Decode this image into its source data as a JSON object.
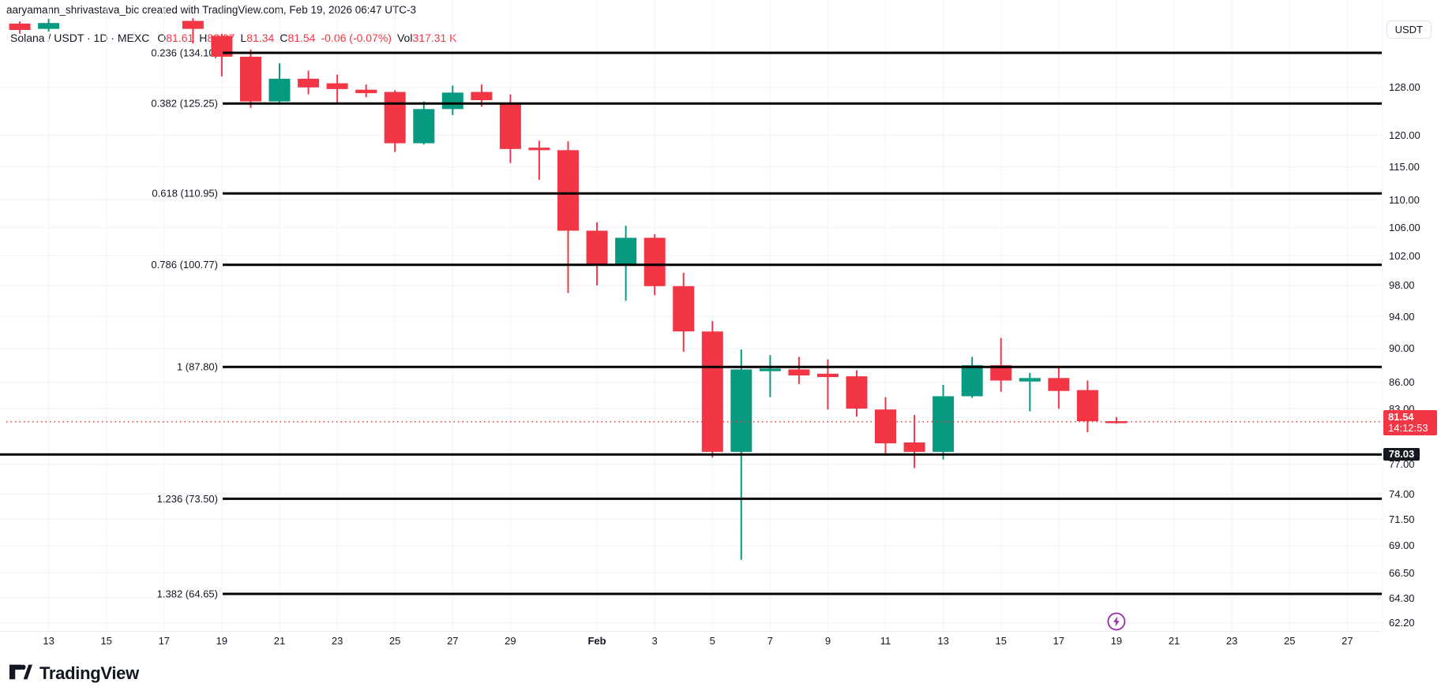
{
  "header": {
    "attribution": "aaryamann_shrivastava_bic created with TradingView.com, Feb 19, 2026 06:47 UTC-3"
  },
  "legend": {
    "symbol": "Solana / USDT · 1D · MEXC",
    "ohlc": [
      {
        "label": "O",
        "value": "81.61"
      },
      {
        "label": "H",
        "value": "82.07"
      },
      {
        "label": "L",
        "value": "81.34"
      },
      {
        "label": "C",
        "value": "81.54"
      }
    ],
    "change": "-0.06 (-0.07%)",
    "vol_label": "Vol",
    "vol_value": "317.31 K"
  },
  "axis_button": {
    "label": "USDT"
  },
  "price_axis": {
    "labels": [
      {
        "text": "128.00",
        "price": 128.0
      },
      {
        "text": "120.00",
        "price": 120.0
      },
      {
        "text": "115.00",
        "price": 115.0
      },
      {
        "text": "110.00",
        "price": 110.0
      },
      {
        "text": "106.00",
        "price": 106.0
      },
      {
        "text": "102.00",
        "price": 102.0
      },
      {
        "text": "98.00",
        "price": 98.0
      },
      {
        "text": "94.00",
        "price": 94.0
      },
      {
        "text": "90.00",
        "price": 90.0
      },
      {
        "text": "86.00",
        "price": 86.0
      },
      {
        "text": "83.00",
        "price": 83.0
      },
      {
        "text": "77.00",
        "price": 77.0
      },
      {
        "text": "74.00",
        "price": 74.0
      },
      {
        "text": "71.50",
        "price": 71.5
      },
      {
        "text": "69.00",
        "price": 69.0
      },
      {
        "text": "66.50",
        "price": 66.5
      },
      {
        "text": "64.30",
        "price": 64.3
      },
      {
        "text": "62.20",
        "price": 62.2
      }
    ],
    "current_badge": {
      "price": "81.54",
      "countdown": "14:12:53"
    },
    "line_badge": {
      "price": "78.03"
    }
  },
  "time_axis": {
    "labels": [
      {
        "text": "13",
        "day": 0
      },
      {
        "text": "15",
        "day": 2
      },
      {
        "text": "17",
        "day": 4
      },
      {
        "text": "19",
        "day": 6
      },
      {
        "text": "21",
        "day": 8
      },
      {
        "text": "23",
        "day": 10
      },
      {
        "text": "25",
        "day": 12
      },
      {
        "text": "27",
        "day": 14
      },
      {
        "text": "29",
        "day": 16
      },
      {
        "text": "Feb",
        "day": 19,
        "bold": true
      },
      {
        "text": "3",
        "day": 21
      },
      {
        "text": "5",
        "day": 23
      },
      {
        "text": "7",
        "day": 25
      },
      {
        "text": "9",
        "day": 27
      },
      {
        "text": "11",
        "day": 29
      },
      {
        "text": "13",
        "day": 31
      },
      {
        "text": "15",
        "day": 33
      },
      {
        "text": "17",
        "day": 35
      },
      {
        "text": "19",
        "day": 37
      },
      {
        "text": "21",
        "day": 39
      },
      {
        "text": "23",
        "day": 41
      },
      {
        "text": "25",
        "day": 43
      },
      {
        "text": "27",
        "day": 45
      }
    ]
  },
  "fib_levels": [
    {
      "label": "0.236 (134.10)",
      "price": 134.1
    },
    {
      "label": "0.382 (125.25)",
      "price": 125.25
    },
    {
      "label": "0.618 (110.95)",
      "price": 110.95
    },
    {
      "label": "0.786 (100.77)",
      "price": 100.77
    },
    {
      "label": "1 (87.80)",
      "price": 87.8
    },
    {
      "label": "1.236 (73.50)",
      "price": 73.5
    },
    {
      "label": "1.382 (64.65)",
      "price": 64.65
    }
  ],
  "horizontal_line": {
    "price": 78.03
  },
  "current_price": 81.54,
  "event_icon": {
    "glyph": "lightning",
    "day": 37,
    "color": "#9c27b0"
  },
  "logo": {
    "text": "TradingView"
  },
  "colors": {
    "up": "#089981",
    "down": "#f23645",
    "grid": "#f0f3fa",
    "fib_line": "#000000",
    "current_line": "#f23645",
    "text": "#131722"
  },
  "chart_data": {
    "type": "candlestick",
    "title": "Solana / USDT · 1D · MEXC",
    "symbol": "Solana / USDT",
    "interval": "1D",
    "exchange": "MEXC",
    "scale": "log",
    "ylim": [
      61.5,
      144.0
    ],
    "volume_label": "317.31 K",
    "candles": [
      {
        "date": "Jan 12",
        "d": -1,
        "o": 139.5,
        "h": 139.9,
        "l": 137.6,
        "c": 138.3
      },
      {
        "date": "Jan 13",
        "d": 0,
        "o": 138.5,
        "h": 140.4,
        "l": 138.0,
        "c": 139.6
      },
      {
        "date": "Jan 18",
        "d": 5,
        "o": 140.0,
        "h": 140.5,
        "l": 135.8,
        "c": 138.5
      },
      {
        "date": "Jan 19",
        "d": 6,
        "o": 137.2,
        "h": 137.6,
        "l": 129.9,
        "c": 133.4
      },
      {
        "date": "Jan 20",
        "d": 7,
        "o": 133.4,
        "h": 134.7,
        "l": 124.5,
        "c": 125.6
      },
      {
        "date": "Jan 21",
        "d": 8,
        "o": 125.6,
        "h": 132.2,
        "l": 125.3,
        "c": 129.5
      },
      {
        "date": "Jan 22",
        "d": 9,
        "o": 129.5,
        "h": 130.9,
        "l": 126.8,
        "c": 128.0
      },
      {
        "date": "Jan 23",
        "d": 10,
        "o": 128.7,
        "h": 130.2,
        "l": 125.4,
        "c": 127.7
      },
      {
        "date": "Jan 24",
        "d": 11,
        "o": 127.6,
        "h": 128.5,
        "l": 126.3,
        "c": 127.0
      },
      {
        "date": "Jan 25",
        "d": 12,
        "o": 127.2,
        "h": 127.5,
        "l": 117.3,
        "c": 118.7
      },
      {
        "date": "Jan 26",
        "d": 13,
        "o": 118.7,
        "h": 125.6,
        "l": 118.5,
        "c": 124.3
      },
      {
        "date": "Jan 27",
        "d": 14,
        "o": 124.3,
        "h": 128.3,
        "l": 123.3,
        "c": 127.1
      },
      {
        "date": "Jan 28",
        "d": 15,
        "o": 127.2,
        "h": 128.5,
        "l": 124.7,
        "c": 125.8
      },
      {
        "date": "Jan 29",
        "d": 16,
        "o": 125.2,
        "h": 126.8,
        "l": 115.6,
        "c": 117.8
      },
      {
        "date": "Jan 30",
        "d": 17,
        "o": 118.0,
        "h": 119.1,
        "l": 113.0,
        "c": 117.6
      },
      {
        "date": "Jan 31",
        "d": 18,
        "o": 117.6,
        "h": 119.0,
        "l": 97.0,
        "c": 105.5
      },
      {
        "date": "Feb 1",
        "d": 19,
        "o": 105.5,
        "h": 106.7,
        "l": 98.0,
        "c": 100.7
      },
      {
        "date": "Feb 2",
        "d": 20,
        "o": 100.7,
        "h": 106.2,
        "l": 96.0,
        "c": 104.5
      },
      {
        "date": "Feb 3",
        "d": 21,
        "o": 104.5,
        "h": 105.0,
        "l": 96.7,
        "c": 97.9
      },
      {
        "date": "Feb 4",
        "d": 22,
        "o": 97.9,
        "h": 99.7,
        "l": 89.6,
        "c": 92.1
      },
      {
        "date": "Feb 5",
        "d": 23,
        "o": 92.1,
        "h": 93.4,
        "l": 77.7,
        "c": 78.3
      },
      {
        "date": "Feb 6",
        "d": 24,
        "o": 78.3,
        "h": 89.9,
        "l": 67.7,
        "c": 87.5
      },
      {
        "date": "Feb 7",
        "d": 25,
        "o": 87.3,
        "h": 89.2,
        "l": 84.3,
        "c": 87.6
      },
      {
        "date": "Feb 8",
        "d": 26,
        "o": 87.5,
        "h": 89.0,
        "l": 85.8,
        "c": 86.8
      },
      {
        "date": "Feb 9",
        "d": 27,
        "o": 87.0,
        "h": 88.7,
        "l": 82.9,
        "c": 86.6
      },
      {
        "date": "Feb 10",
        "d": 28,
        "o": 86.7,
        "h": 87.4,
        "l": 82.1,
        "c": 83.0
      },
      {
        "date": "Feb 11",
        "d": 29,
        "o": 82.9,
        "h": 84.3,
        "l": 77.9,
        "c": 79.2
      },
      {
        "date": "Feb 12",
        "d": 30,
        "o": 79.3,
        "h": 82.3,
        "l": 76.6,
        "c": 78.3
      },
      {
        "date": "Feb 13",
        "d": 31,
        "o": 78.3,
        "h": 85.7,
        "l": 77.5,
        "c": 84.4
      },
      {
        "date": "Feb 14",
        "d": 32,
        "o": 84.4,
        "h": 89.0,
        "l": 84.2,
        "c": 88.0
      },
      {
        "date": "Feb 15",
        "d": 33,
        "o": 88.0,
        "h": 91.3,
        "l": 84.9,
        "c": 86.2
      },
      {
        "date": "Feb 16",
        "d": 34,
        "o": 86.1,
        "h": 87.1,
        "l": 82.7,
        "c": 86.5
      },
      {
        "date": "Feb 17",
        "d": 35,
        "o": 86.5,
        "h": 87.8,
        "l": 83.0,
        "c": 85.0
      },
      {
        "date": "Feb 18",
        "d": 36,
        "o": 85.1,
        "h": 86.2,
        "l": 80.4,
        "c": 81.6
      },
      {
        "date": "Feb 19",
        "d": 37,
        "o": 81.61,
        "h": 82.07,
        "l": 81.34,
        "c": 81.54
      }
    ]
  }
}
